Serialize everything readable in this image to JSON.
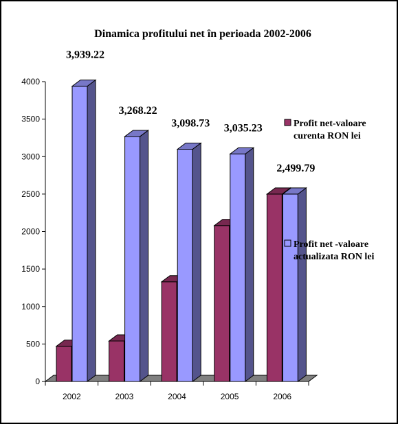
{
  "chart_data": {
    "type": "bar",
    "title": "Dinamica profitului net în perioada 2002-2006",
    "categories": [
      "2002",
      "2003",
      "2004",
      "2005",
      "2006"
    ],
    "series": [
      {
        "name": "Profit net-valoare curenta RON lei",
        "legend_lines": [
          "Profit net-valoare",
          "curenta RON lei"
        ],
        "values": [
          470,
          540,
          1330,
          2080,
          2500
        ],
        "color": "#993366"
      },
      {
        "name": "Profit net -valoare actualizata RON lei",
        "legend_lines": [
          "Profit net -valoare",
          "actualizata RON lei"
        ],
        "values": [
          3939.22,
          3268.22,
          3098.73,
          3035.23,
          2499.79
        ],
        "color": "#9999ff"
      }
    ],
    "data_labels": [
      "3,939.22",
      "3,268.22",
      "3,098.73",
      "3,035.23",
      "2,499.79"
    ],
    "yticks": [
      "0",
      "500",
      "1000",
      "1500",
      "2000",
      "2500",
      "3000",
      "3500",
      "4000"
    ],
    "ylim": [
      0,
      4000
    ],
    "grid": false,
    "legend_position": "right",
    "floor_color": "#808080"
  }
}
